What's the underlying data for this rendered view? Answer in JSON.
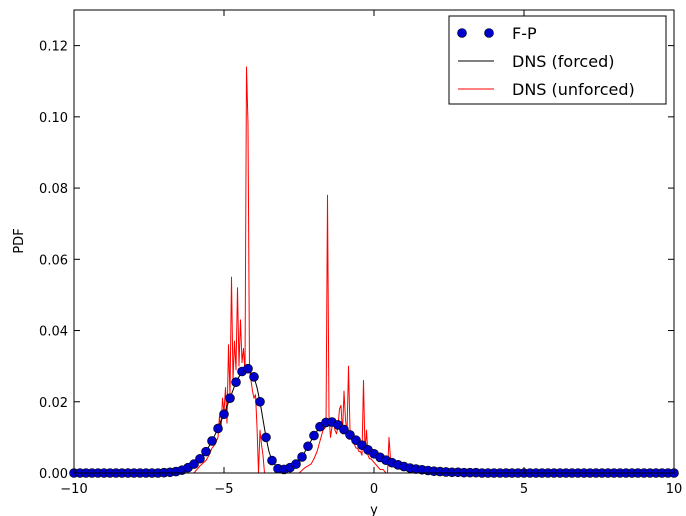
{
  "chart_data": {
    "type": "line",
    "title": "",
    "xlabel": "y",
    "ylabel": "PDF",
    "xlim": [
      -10,
      10
    ],
    "ylim": [
      0,
      0.13
    ],
    "xticks": [
      -10,
      -5,
      0,
      5,
      10
    ],
    "xtick_labels": [
      "−10",
      "−5",
      "0",
      "5",
      "10"
    ],
    "yticks": [
      0.0,
      0.02,
      0.04,
      0.06,
      0.08,
      0.1,
      0.12
    ],
    "ytick_labels": [
      "0.00",
      "0.02",
      "0.04",
      "0.06",
      "0.08",
      "0.10",
      "0.12"
    ],
    "grid": false,
    "legend_position": "top-right",
    "series": [
      {
        "name": "F-P",
        "style": "markers",
        "color": "#0000cc",
        "x": [
          -10.0,
          -9.8,
          -9.6,
          -9.4,
          -9.2,
          -9.0,
          -8.8,
          -8.6,
          -8.4,
          -8.2,
          -8.0,
          -7.8,
          -7.6,
          -7.4,
          -7.2,
          -7.0,
          -6.8,
          -6.6,
          -6.4,
          -6.2,
          -6.0,
          -5.8,
          -5.6,
          -5.4,
          -5.2,
          -5.0,
          -4.8,
          -4.6,
          -4.4,
          -4.2,
          -4.0,
          -3.8,
          -3.6,
          -3.4,
          -3.2,
          -3.0,
          -2.8,
          -2.6,
          -2.4,
          -2.2,
          -2.0,
          -1.8,
          -1.6,
          -1.4,
          -1.2,
          -1.0,
          -0.8,
          -0.6,
          -0.4,
          -0.2,
          0.0,
          0.2,
          0.4,
          0.6,
          0.8,
          1.0,
          1.2,
          1.4,
          1.6,
          1.8,
          2.0,
          2.2,
          2.4,
          2.6,
          2.8,
          3.0,
          3.2,
          3.4,
          3.6,
          3.8,
          4.0,
          4.2,
          4.4,
          4.6,
          4.8,
          5.0,
          5.2,
          5.4,
          5.6,
          5.8,
          6.0,
          6.2,
          6.4,
          6.6,
          6.8,
          7.0,
          7.2,
          7.4,
          7.6,
          7.8,
          8.0,
          8.2,
          8.4,
          8.6,
          8.8,
          9.0,
          9.2,
          9.4,
          9.6,
          9.8,
          10.0
        ],
        "y": [
          0,
          0,
          0,
          0,
          0,
          0,
          0,
          0,
          0,
          0,
          0,
          0,
          0,
          0,
          0,
          0.0001,
          0.0002,
          0.0004,
          0.0008,
          0.0015,
          0.0025,
          0.004,
          0.006,
          0.009,
          0.0125,
          0.0165,
          0.021,
          0.0255,
          0.0285,
          0.0293,
          0.027,
          0.02,
          0.01,
          0.0035,
          0.0012,
          0.001,
          0.0015,
          0.0025,
          0.0045,
          0.0075,
          0.0105,
          0.013,
          0.0142,
          0.0143,
          0.0135,
          0.0122,
          0.0107,
          0.0092,
          0.0078,
          0.0065,
          0.0054,
          0.0044,
          0.0036,
          0.0029,
          0.0023,
          0.0018,
          0.0014,
          0.0011,
          0.0009,
          0.0007,
          0.0005,
          0.0004,
          0.0003,
          0.0002,
          0.0002,
          0.0001,
          0.0001,
          0.0001,
          0,
          0,
          0,
          0,
          0,
          0,
          0,
          0,
          0,
          0,
          0,
          0,
          0,
          0,
          0,
          0,
          0,
          0,
          0,
          0,
          0,
          0,
          0,
          0,
          0,
          0,
          0,
          0,
          0,
          0,
          0,
          0,
          0
        ]
      },
      {
        "name": "DNS (forced)",
        "style": "line",
        "color": "#000000",
        "x": [
          -10.0,
          -7.0,
          -6.6,
          -6.2,
          -6.0,
          -5.8,
          -5.6,
          -5.4,
          -5.2,
          -5.0,
          -4.8,
          -4.6,
          -4.4,
          -4.2,
          -4.0,
          -3.9,
          -3.8,
          -3.7,
          -3.6,
          -3.5,
          -3.4,
          -3.2,
          -3.0,
          -2.8,
          -2.6,
          -2.4,
          -2.2,
          -2.0,
          -1.8,
          -1.6,
          -1.4,
          -1.2,
          -1.0,
          -0.8,
          -0.6,
          -0.4,
          -0.2,
          0.0,
          0.4,
          0.8,
          1.2,
          1.6,
          2.0,
          2.4,
          2.8,
          3.2,
          3.6,
          4.0,
          10.0
        ],
        "y": [
          0,
          0.0001,
          0.0004,
          0.0015,
          0.0025,
          0.004,
          0.006,
          0.009,
          0.0125,
          0.0165,
          0.021,
          0.0255,
          0.0285,
          0.0293,
          0.027,
          0.024,
          0.02,
          0.015,
          0.01,
          0.006,
          0.0035,
          0.0012,
          0.001,
          0.0015,
          0.0025,
          0.0045,
          0.0075,
          0.0105,
          0.013,
          0.0142,
          0.0143,
          0.0135,
          0.0122,
          0.0107,
          0.0092,
          0.0078,
          0.0065,
          0.0054,
          0.0036,
          0.0023,
          0.0014,
          0.0009,
          0.0005,
          0.0003,
          0.0002,
          0.0001,
          0.0001,
          0,
          0
        ]
      },
      {
        "name": "DNS (unforced)",
        "style": "line",
        "color": "#ff0000",
        "x": [
          -10.0,
          -6.0,
          -5.9,
          -5.8,
          -5.6,
          -5.5,
          -5.4,
          -5.3,
          -5.2,
          -5.15,
          -5.1,
          -5.05,
          -5.0,
          -4.95,
          -4.9,
          -4.85,
          -4.8,
          -4.75,
          -4.7,
          -4.65,
          -4.6,
          -4.55,
          -4.5,
          -4.45,
          -4.4,
          -4.35,
          -4.3,
          -4.25,
          -4.2,
          -4.15,
          -4.1,
          -4.05,
          -4.0,
          -3.95,
          -3.9,
          -3.85,
          -3.8,
          -3.75,
          -3.7,
          -3.65,
          -3.6,
          -3.5,
          -3.0,
          -2.5,
          -2.3,
          -2.1,
          -2.0,
          -1.9,
          -1.8,
          -1.7,
          -1.6,
          -1.55,
          -1.5,
          -1.45,
          -1.4,
          -1.35,
          -1.3,
          -1.25,
          -1.2,
          -1.15,
          -1.1,
          -1.05,
          -1.0,
          -0.95,
          -0.9,
          -0.85,
          -0.8,
          -0.75,
          -0.7,
          -0.65,
          -0.6,
          -0.55,
          -0.5,
          -0.45,
          -0.4,
          -0.35,
          -0.3,
          -0.25,
          -0.2,
          -0.15,
          -0.1,
          -0.05,
          0.0,
          0.1,
          0.2,
          0.3,
          0.4,
          0.45,
          0.5,
          0.55,
          0.6,
          0.7,
          0.8,
          1.0,
          1.2,
          1.5,
          1.8,
          2.0,
          2.3,
          2.6,
          3.0,
          10.0
        ],
        "y": [
          0,
          0,
          0.001,
          0.002,
          0.0035,
          0.005,
          0.007,
          0.008,
          0.01,
          0.016,
          0.012,
          0.021,
          0.017,
          0.024,
          0.014,
          0.036,
          0.022,
          0.055,
          0.026,
          0.037,
          0.029,
          0.052,
          0.03,
          0.043,
          0.031,
          0.035,
          0.028,
          0.114,
          0.098,
          0.029,
          0.026,
          0.023,
          0.021,
          0.022,
          0.013,
          0.0,
          0.012,
          0.008,
          0.005,
          0.0,
          0.0,
          0.0,
          0.0,
          0.0,
          0.0015,
          0.0025,
          0.004,
          0.006,
          0.009,
          0.012,
          0.013,
          0.078,
          0.016,
          0.01,
          0.013,
          0.015,
          0.012,
          0.011,
          0.013,
          0.018,
          0.019,
          0.011,
          0.023,
          0.015,
          0.011,
          0.03,
          0.012,
          0.011,
          0.009,
          0.008,
          0.007,
          0.007,
          0.006,
          0.006,
          0.005,
          0.026,
          0.006,
          0.012,
          0.005,
          0.004,
          0.004,
          0.0035,
          0.003,
          0.002,
          0.001,
          0.001,
          0.0,
          0.0,
          0.01,
          0.004,
          0.002,
          0.0015,
          0.0012,
          0.001,
          0.0008,
          0.0005,
          0.0003,
          0.0002,
          0.0001,
          0.0001,
          0.0,
          0
        ]
      }
    ]
  }
}
